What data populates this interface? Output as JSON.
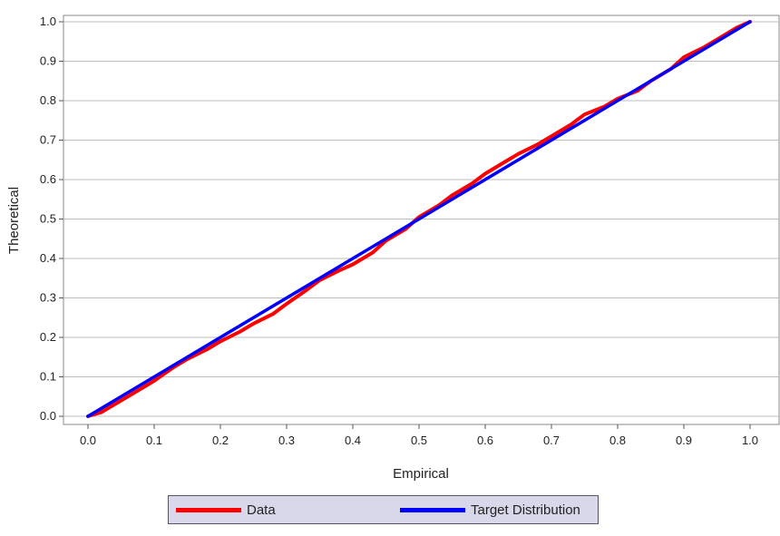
{
  "chart_data": {
    "type": "line",
    "title": "",
    "xlabel": "Empirical",
    "ylabel": "Theoretical",
    "xlim": [
      0.0,
      1.0
    ],
    "ylim": [
      0.0,
      1.0
    ],
    "xticks": [
      "0.0",
      "0.1",
      "0.2",
      "0.3",
      "0.4",
      "0.5",
      "0.6",
      "0.7",
      "0.8",
      "0.9",
      "1.0"
    ],
    "yticks": [
      "0.0",
      "0.1",
      "0.2",
      "0.3",
      "0.4",
      "0.5",
      "0.6",
      "0.7",
      "0.8",
      "0.9",
      "1.0"
    ],
    "grid": "horizontal",
    "legend_position": "bottom",
    "series": [
      {
        "name": "Data",
        "color": "#ff0000",
        "x": [
          0.0,
          0.02,
          0.05,
          0.08,
          0.1,
          0.13,
          0.15,
          0.18,
          0.2,
          0.23,
          0.25,
          0.28,
          0.3,
          0.33,
          0.35,
          0.38,
          0.4,
          0.43,
          0.45,
          0.48,
          0.5,
          0.53,
          0.55,
          0.58,
          0.6,
          0.63,
          0.65,
          0.68,
          0.7,
          0.73,
          0.75,
          0.78,
          0.8,
          0.83,
          0.85,
          0.88,
          0.9,
          0.93,
          0.95,
          0.98,
          1.0
        ],
        "y": [
          0.0,
          0.01,
          0.04,
          0.07,
          0.09,
          0.125,
          0.145,
          0.17,
          0.19,
          0.215,
          0.235,
          0.26,
          0.285,
          0.32,
          0.345,
          0.37,
          0.385,
          0.415,
          0.445,
          0.475,
          0.505,
          0.535,
          0.56,
          0.59,
          0.615,
          0.645,
          0.665,
          0.69,
          0.71,
          0.74,
          0.765,
          0.785,
          0.805,
          0.825,
          0.85,
          0.88,
          0.91,
          0.935,
          0.955,
          0.985,
          1.0
        ]
      },
      {
        "name": "Target Distribution",
        "color": "#0000ff",
        "x": [
          0.0,
          1.0
        ],
        "y": [
          0.0,
          1.0
        ]
      }
    ]
  }
}
